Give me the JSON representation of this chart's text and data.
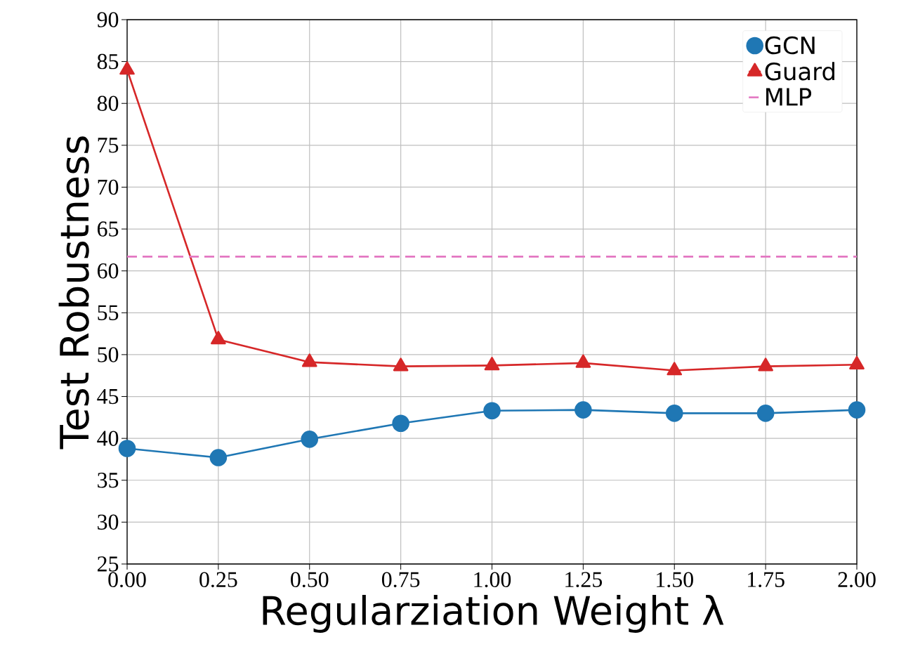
{
  "chart_data": {
    "type": "line",
    "xlabel": "Regularziation Weight λ",
    "ylabel": "Test Robustness",
    "x": [
      0,
      0.25,
      0.5,
      0.75,
      1.0,
      1.25,
      1.5,
      1.75,
      2.0
    ],
    "series": [
      {
        "name": "GCN",
        "color": "#1f77b4",
        "marker": "circle",
        "line_style": "solid",
        "values": [
          38.8,
          37.7,
          39.9,
          41.8,
          43.3,
          43.4,
          43.0,
          43.0,
          43.4
        ]
      },
      {
        "name": "Guard",
        "color": "#d62728",
        "marker": "triangle",
        "line_style": "solid",
        "values": [
          84.0,
          51.8,
          49.1,
          48.6,
          48.7,
          49.0,
          48.1,
          48.6,
          48.8
        ]
      },
      {
        "name": "MLP",
        "color": "#e377c2",
        "marker": "none",
        "line_style": "dashed",
        "x": [
          0,
          2.0
        ],
        "values": [
          61.7,
          61.7
        ]
      }
    ],
    "xlim": [
      0,
      2.0
    ],
    "ylim": [
      25,
      90
    ],
    "xticks": [
      {
        "value": 0,
        "label": "0.00"
      },
      {
        "value": 0.25,
        "label": "0.25"
      },
      {
        "value": 0.5,
        "label": "0.50"
      },
      {
        "value": 0.75,
        "label": "0.75"
      },
      {
        "value": 1.0,
        "label": "1.00"
      },
      {
        "value": 1.25,
        "label": "1.25"
      },
      {
        "value": 1.5,
        "label": "1.50"
      },
      {
        "value": 1.75,
        "label": "1.75"
      },
      {
        "value": 2.0,
        "label": "2.00"
      }
    ],
    "yticks": [
      25,
      30,
      35,
      40,
      45,
      50,
      55,
      60,
      65,
      70,
      75,
      80,
      85,
      90
    ],
    "grid": true,
    "legend": "top right"
  }
}
